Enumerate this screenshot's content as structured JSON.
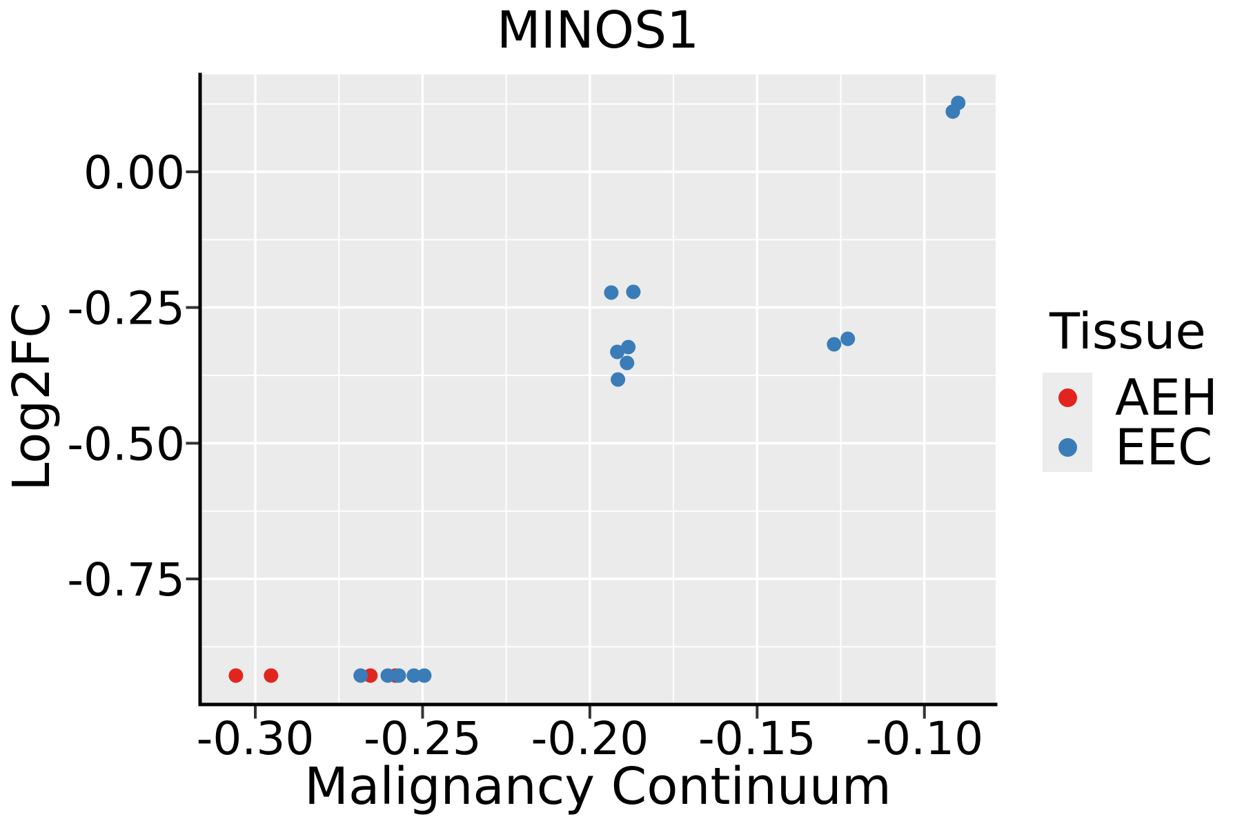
{
  "chart_data": {
    "type": "scatter",
    "title": "MINOS1",
    "xlabel": "Malignancy Continuum",
    "ylabel": "Log2FC",
    "xlim": [
      -0.3165,
      -0.0787
    ],
    "ylim": [
      -0.9813,
      0.1792
    ],
    "x_ticks": [
      -0.3,
      -0.25,
      -0.2,
      -0.15,
      -0.1
    ],
    "x_tick_labels": [
      "-0.30",
      "-0.25",
      "-0.20",
      "-0.15",
      "-0.10"
    ],
    "x_minor_ticks": [
      -0.275,
      -0.225,
      -0.175,
      -0.125
    ],
    "y_ticks": [
      0.0,
      -0.25,
      -0.5,
      -0.75
    ],
    "y_tick_labels": [
      "0.00",
      "-0.25",
      "-0.50",
      "-0.75"
    ],
    "y_minor_ticks": [
      0.125,
      -0.125,
      -0.375,
      -0.625,
      -0.875
    ],
    "grid": true,
    "panel_bg": "#ebebeb",
    "grid_color": "#ffffff",
    "spine_color": "#000000",
    "tick_color": "#333333",
    "legend_key_bg": "#ececec",
    "legend": {
      "title": "Tissue",
      "position": "right",
      "entries": [
        {
          "label": "AEH",
          "color": "#e2241f"
        },
        {
          "label": "EEC",
          "color": "#3a7cb8"
        }
      ]
    },
    "series": [
      {
        "name": "AEH",
        "color": "#e2241f",
        "points": [
          [
            -0.3058,
            -0.928
          ],
          [
            -0.2953,
            -0.928
          ],
          [
            -0.2656,
            -0.928
          ],
          [
            -0.2581,
            -0.928
          ]
        ]
      },
      {
        "name": "EEC",
        "color": "#3a7cb8",
        "points": [
          [
            -0.2685,
            -0.928
          ],
          [
            -0.2604,
            -0.928
          ],
          [
            -0.2571,
            -0.928
          ],
          [
            -0.2526,
            -0.928
          ],
          [
            -0.2495,
            -0.928
          ],
          [
            -0.1936,
            -0.2225
          ],
          [
            -0.187,
            -0.2212
          ],
          [
            -0.1885,
            -0.3229
          ],
          [
            -0.1918,
            -0.3318
          ],
          [
            -0.1889,
            -0.3521
          ],
          [
            -0.1916,
            -0.3826
          ],
          [
            -0.127,
            -0.3178
          ],
          [
            -0.1229,
            -0.3076
          ],
          [
            -0.0915,
            0.111
          ],
          [
            -0.0899,
            0.127
          ]
        ]
      }
    ]
  }
}
